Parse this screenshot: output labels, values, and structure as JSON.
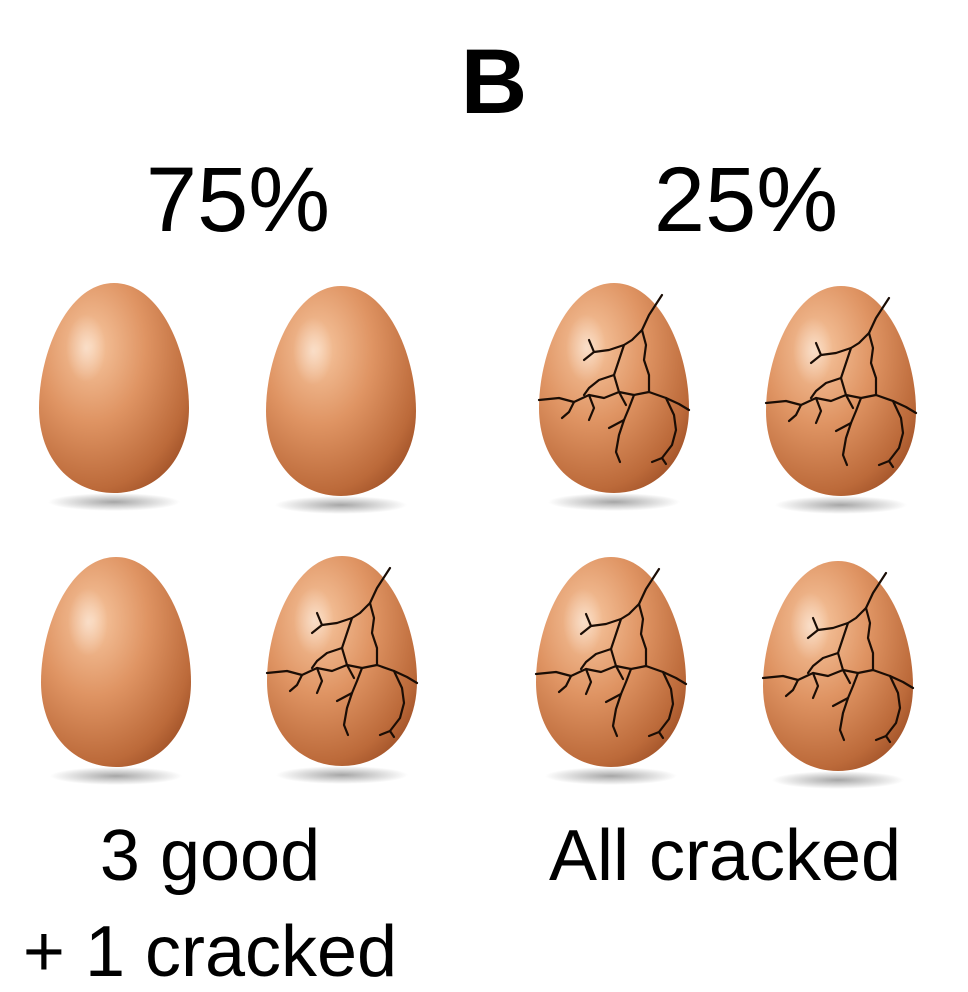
{
  "panel_label": "B",
  "groups": [
    {
      "percent": "75%",
      "caption_line1": "3 good",
      "caption_line2": "+ 1 cracked",
      "eggs": [
        "intact",
        "intact",
        "intact",
        "cracked"
      ]
    },
    {
      "percent": "25%",
      "caption_line1": "All cracked",
      "eggs": [
        "cracked",
        "cracked",
        "cracked",
        "cracked"
      ]
    }
  ],
  "colors": {
    "egg_light": "#f6c49c",
    "egg_mid": "#d9895a",
    "egg_dark": "#a8592c",
    "crack": "#1a0d05",
    "text": "#000000"
  }
}
